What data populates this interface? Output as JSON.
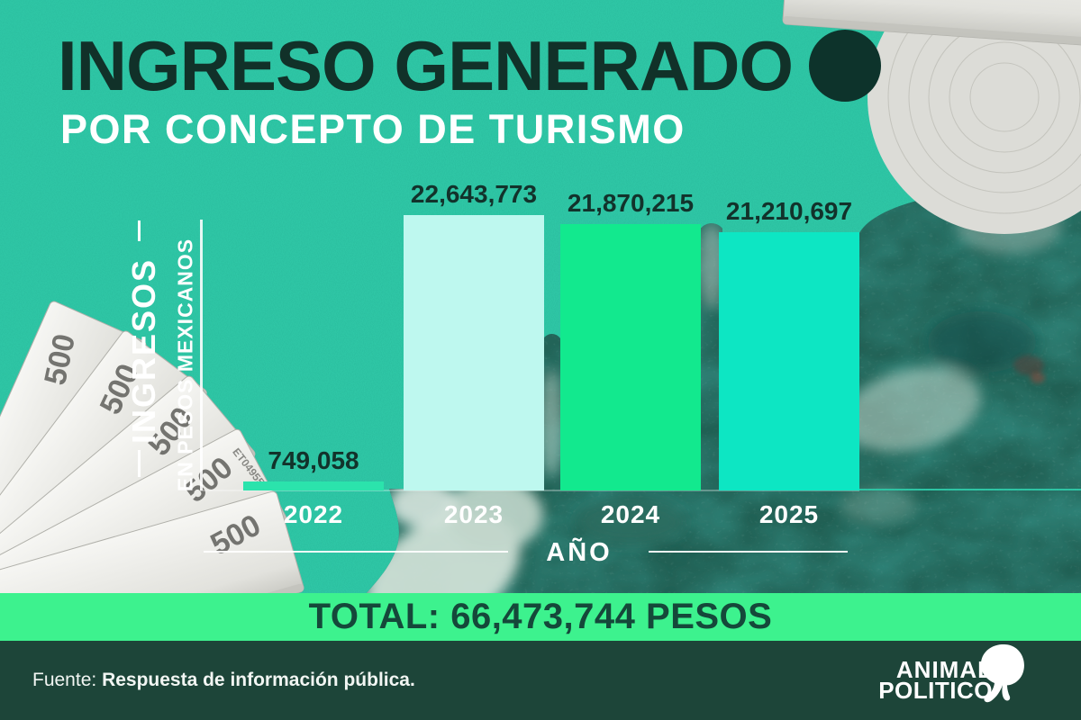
{
  "title": "INGRESO GENERADO",
  "subtitle": "POR CONCEPTO DE TURISMO",
  "chart_data": {
    "type": "bar",
    "title": "",
    "categories": [
      "2022",
      "2023",
      "2024",
      "2025"
    ],
    "values": [
      749058,
      22643773,
      21870215,
      21210697
    ],
    "value_labels": [
      "749,058",
      "22,643,773",
      "21,870,215",
      "21,210,697"
    ],
    "xlabel": "AÑO",
    "ylabel": "INGRESOS",
    "ylabel_secondary": "EN PESOS MEXICANOS",
    "ylim": [
      0,
      22643773
    ],
    "grid": false,
    "legend": "none",
    "bar_colors": [
      "#2be3ac",
      "#bef8ef",
      "#12e98e",
      "#0de6c3"
    ]
  },
  "total_banner": {
    "label": "TOTAL: 66,473,744 PESOS"
  },
  "source": {
    "prefix": "Fuente: ",
    "text": "Respuesta de información pública."
  },
  "logo": {
    "line1": "ANIMAL",
    "line2": "POLITICO"
  },
  "decor": {
    "bill_value": "500",
    "bill_serial": "ET049557"
  },
  "colors": {
    "background": "#2fc7a6",
    "title_text": "#113129",
    "subtitle_text": "#ffffff",
    "value_label_text": "#12322b",
    "banner_bg": "#3df28e",
    "banner_text": "#15483a",
    "footer_bg": "#1d4539",
    "ocean": "#216054"
  }
}
